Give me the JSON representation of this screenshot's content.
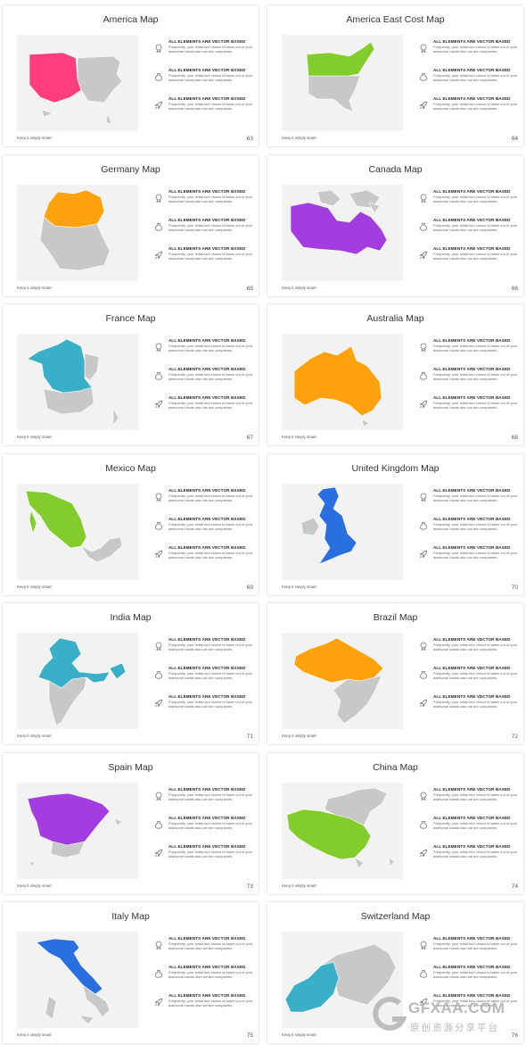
{
  "feature": {
    "heading": "ALL ELEMENTS ARE VECTOR BASED",
    "body": "Frequently, your initial font choice is taken out of your awesome hands also we are companies."
  },
  "footer_text": "Keep it simply smart",
  "slides": [
    {
      "title": "America Map",
      "page": "63",
      "color": "#ff3d7f",
      "map": "us"
    },
    {
      "title": "America East Cost Map",
      "page": "64",
      "color": "#82cc2c",
      "map": "useast"
    },
    {
      "title": "Germany Map",
      "page": "65",
      "color": "#ffa20e",
      "map": "germany"
    },
    {
      "title": "Canada Map",
      "page": "66",
      "color": "#a33de0",
      "map": "canada"
    },
    {
      "title": "France Map",
      "page": "67",
      "color": "#3aafc8",
      "map": "france"
    },
    {
      "title": "Australia Map",
      "page": "68",
      "color": "#ffa20e",
      "map": "australia"
    },
    {
      "title": "Mexico Map",
      "page": "69",
      "color": "#82cc2c",
      "map": "mexico"
    },
    {
      "title": "United Kingdom Map",
      "page": "70",
      "color": "#2a6fe0",
      "map": "uk"
    },
    {
      "title": "India Map",
      "page": "71",
      "color": "#3aafc8",
      "map": "india"
    },
    {
      "title": "Brazil Map",
      "page": "72",
      "color": "#ffa20e",
      "map": "brazil"
    },
    {
      "title": "Spain Map",
      "page": "73",
      "color": "#a33de0",
      "map": "spain"
    },
    {
      "title": "China Map",
      "page": "74",
      "color": "#82cc2c",
      "map": "china"
    },
    {
      "title": "Italy Map",
      "page": "75",
      "color": "#2a6fe0",
      "map": "italy"
    },
    {
      "title": "Switzerland Map",
      "page": "76",
      "color": "#3aafc8",
      "map": "switzerland"
    }
  ],
  "watermark": {
    "brand": "GFXAA.COM",
    "tagline": "原创资源分享平台"
  }
}
